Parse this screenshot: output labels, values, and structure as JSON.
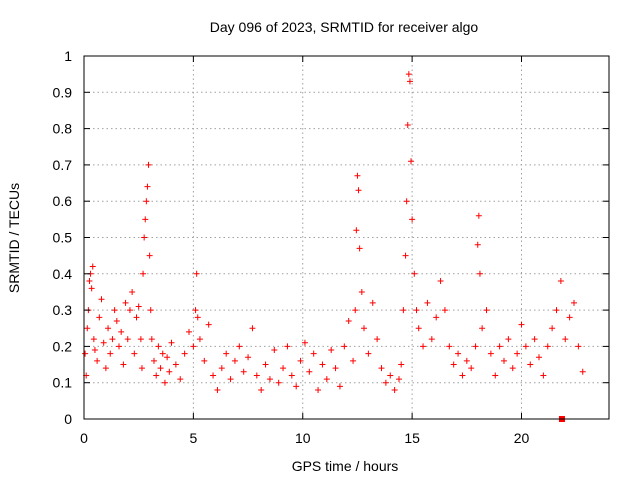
{
  "chart_data": {
    "type": "scatter",
    "title": "Day 096 of 2023, SRMTID for receiver algo",
    "xlabel": "GPS time / hours",
    "ylabel": "SRMTID / TECUs",
    "xlim": [
      0,
      24
    ],
    "ylim": [
      0,
      1
    ],
    "xticks": [
      0,
      5,
      10,
      15,
      20
    ],
    "xtick_labels": [
      "0",
      "5",
      "10",
      "15",
      "20"
    ],
    "yticks": [
      0,
      0.1,
      0.2,
      0.3,
      0.4,
      0.5,
      0.6,
      0.7,
      0.8,
      0.9,
      1
    ],
    "ytick_labels": [
      "0",
      "0.1",
      "0.2",
      "0.3",
      "0.4",
      "0.5",
      "0.6",
      "0.7",
      "0.8",
      "0.9",
      "1"
    ],
    "grid": true,
    "marker": "plus",
    "color": "#ff0000",
    "series": [
      {
        "name": "SRMTID",
        "points": [
          [
            0.05,
            0.18
          ],
          [
            0.1,
            0.12
          ],
          [
            0.15,
            0.25
          ],
          [
            0.2,
            0.3
          ],
          [
            0.25,
            0.38
          ],
          [
            0.3,
            0.4
          ],
          [
            0.35,
            0.36
          ],
          [
            0.4,
            0.42
          ],
          [
            0.45,
            0.22
          ],
          [
            0.5,
            0.19
          ],
          [
            0.6,
            0.16
          ],
          [
            0.7,
            0.28
          ],
          [
            0.8,
            0.33
          ],
          [
            0.9,
            0.21
          ],
          [
            1.0,
            0.14
          ],
          [
            1.1,
            0.25
          ],
          [
            1.2,
            0.18
          ],
          [
            1.3,
            0.22
          ],
          [
            1.4,
            0.3
          ],
          [
            1.5,
            0.27
          ],
          [
            1.6,
            0.2
          ],
          [
            1.7,
            0.24
          ],
          [
            1.8,
            0.15
          ],
          [
            1.9,
            0.32
          ],
          [
            2.0,
            0.22
          ],
          [
            2.1,
            0.3
          ],
          [
            2.2,
            0.35
          ],
          [
            2.3,
            0.18
          ],
          [
            2.4,
            0.28
          ],
          [
            2.5,
            0.31
          ],
          [
            2.6,
            0.22
          ],
          [
            2.65,
            0.14
          ],
          [
            2.7,
            0.4
          ],
          [
            2.75,
            0.5
          ],
          [
            2.8,
            0.55
          ],
          [
            2.85,
            0.6
          ],
          [
            2.9,
            0.64
          ],
          [
            2.95,
            0.7
          ],
          [
            3.0,
            0.45
          ],
          [
            3.05,
            0.3
          ],
          [
            3.1,
            0.22
          ],
          [
            3.2,
            0.16
          ],
          [
            3.3,
            0.12
          ],
          [
            3.4,
            0.2
          ],
          [
            3.5,
            0.14
          ],
          [
            3.6,
            0.18
          ],
          [
            3.7,
            0.1
          ],
          [
            3.8,
            0.17
          ],
          [
            3.9,
            0.13
          ],
          [
            4.0,
            0.21
          ],
          [
            4.2,
            0.15
          ],
          [
            4.4,
            0.11
          ],
          [
            4.6,
            0.18
          ],
          [
            4.8,
            0.24
          ],
          [
            5.0,
            0.2
          ],
          [
            5.1,
            0.3
          ],
          [
            5.15,
            0.4
          ],
          [
            5.2,
            0.28
          ],
          [
            5.3,
            0.22
          ],
          [
            5.5,
            0.16
          ],
          [
            5.7,
            0.26
          ],
          [
            5.9,
            0.12
          ],
          [
            6.1,
            0.08
          ],
          [
            6.3,
            0.14
          ],
          [
            6.5,
            0.18
          ],
          [
            6.7,
            0.11
          ],
          [
            6.9,
            0.16
          ],
          [
            7.1,
            0.2
          ],
          [
            7.3,
            0.13
          ],
          [
            7.5,
            0.17
          ],
          [
            7.7,
            0.25
          ],
          [
            7.9,
            0.12
          ],
          [
            8.1,
            0.08
          ],
          [
            8.3,
            0.15
          ],
          [
            8.5,
            0.11
          ],
          [
            8.7,
            0.19
          ],
          [
            8.9,
            0.1
          ],
          [
            9.1,
            0.14
          ],
          [
            9.3,
            0.2
          ],
          [
            9.5,
            0.12
          ],
          [
            9.7,
            0.09
          ],
          [
            9.9,
            0.16
          ],
          [
            10.1,
            0.21
          ],
          [
            10.3,
            0.13
          ],
          [
            10.5,
            0.18
          ],
          [
            10.7,
            0.08
          ],
          [
            10.9,
            0.15
          ],
          [
            11.1,
            0.11
          ],
          [
            11.3,
            0.19
          ],
          [
            11.5,
            0.14
          ],
          [
            11.7,
            0.09
          ],
          [
            11.9,
            0.2
          ],
          [
            12.1,
            0.27
          ],
          [
            12.3,
            0.16
          ],
          [
            12.4,
            0.3
          ],
          [
            12.45,
            0.52
          ],
          [
            12.5,
            0.67
          ],
          [
            12.55,
            0.63
          ],
          [
            12.6,
            0.47
          ],
          [
            12.7,
            0.35
          ],
          [
            12.8,
            0.25
          ],
          [
            13.0,
            0.18
          ],
          [
            13.2,
            0.32
          ],
          [
            13.4,
            0.22
          ],
          [
            13.6,
            0.14
          ],
          [
            13.8,
            0.1
          ],
          [
            14.0,
            0.12
          ],
          [
            14.2,
            0.08
          ],
          [
            14.4,
            0.11
          ],
          [
            14.5,
            0.15
          ],
          [
            14.6,
            0.3
          ],
          [
            14.7,
            0.45
          ],
          [
            14.75,
            0.6
          ],
          [
            14.8,
            0.81
          ],
          [
            14.85,
            0.95
          ],
          [
            14.9,
            0.93
          ],
          [
            14.95,
            0.71
          ],
          [
            15.0,
            0.55
          ],
          [
            15.1,
            0.4
          ],
          [
            15.2,
            0.3
          ],
          [
            15.3,
            0.25
          ],
          [
            15.5,
            0.2
          ],
          [
            15.7,
            0.32
          ],
          [
            15.9,
            0.22
          ],
          [
            16.1,
            0.28
          ],
          [
            16.3,
            0.38
          ],
          [
            16.5,
            0.3
          ],
          [
            16.7,
            0.2
          ],
          [
            16.9,
            0.15
          ],
          [
            17.1,
            0.18
          ],
          [
            17.3,
            0.12
          ],
          [
            17.5,
            0.16
          ],
          [
            17.7,
            0.14
          ],
          [
            17.9,
            0.2
          ],
          [
            18.0,
            0.48
          ],
          [
            18.05,
            0.56
          ],
          [
            18.1,
            0.4
          ],
          [
            18.2,
            0.25
          ],
          [
            18.4,
            0.3
          ],
          [
            18.6,
            0.18
          ],
          [
            18.8,
            0.12
          ],
          [
            19.0,
            0.2
          ],
          [
            19.2,
            0.16
          ],
          [
            19.4,
            0.22
          ],
          [
            19.6,
            0.14
          ],
          [
            19.8,
            0.18
          ],
          [
            20.0,
            0.26
          ],
          [
            20.2,
            0.2
          ],
          [
            20.4,
            0.15
          ],
          [
            20.6,
            0.22
          ],
          [
            20.8,
            0.17
          ],
          [
            21.0,
            0.12
          ],
          [
            21.2,
            0.2
          ],
          [
            21.4,
            0.25
          ],
          [
            21.6,
            0.3
          ],
          [
            21.8,
            0.38
          ],
          [
            22.0,
            0.22
          ],
          [
            22.2,
            0.28
          ],
          [
            22.4,
            0.32
          ],
          [
            22.6,
            0.2
          ],
          [
            22.8,
            0.13
          ]
        ]
      }
    ],
    "annotations": [
      {
        "type": "square-marker",
        "x": 21.85,
        "y": 0.0
      }
    ]
  }
}
